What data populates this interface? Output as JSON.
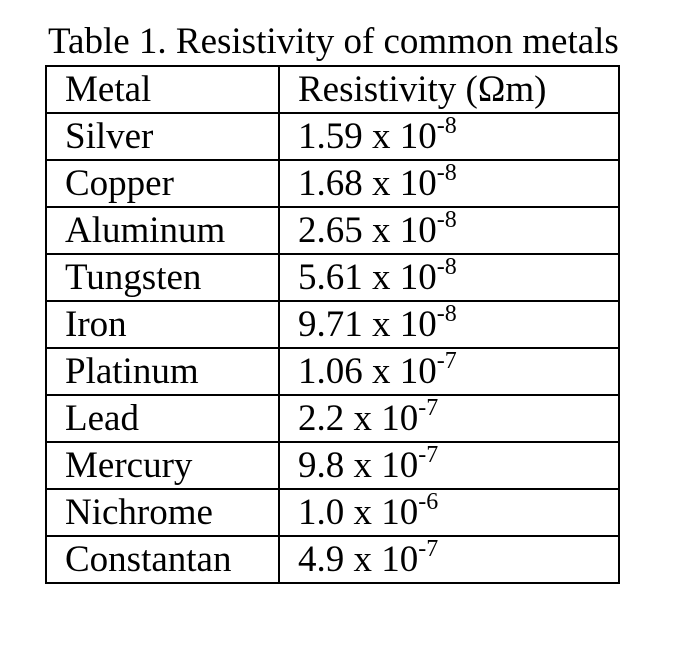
{
  "table": {
    "caption": "Table 1. Resistivity of common metals",
    "headers": {
      "metal": "Metal",
      "resistivity": "Resistivity (Ωm)"
    },
    "rows": [
      {
        "metal": "Silver",
        "mantissa": "1.59 x 10",
        "exponent": "-8"
      },
      {
        "metal": "Copper",
        "mantissa": "1.68 x 10",
        "exponent": "-8"
      },
      {
        "metal": "Aluminum",
        "mantissa": "2.65 x 10",
        "exponent": "-8"
      },
      {
        "metal": "Tungsten",
        "mantissa": "5.61 x 10",
        "exponent": "-8"
      },
      {
        "metal": "Iron",
        "mantissa": "9.71 x 10",
        "exponent": "-8"
      },
      {
        "metal": "Platinum",
        "mantissa": "1.06 x 10",
        "exponent": "-7"
      },
      {
        "metal": "Lead",
        "mantissa": "2.2 x 10",
        "exponent": "-7"
      },
      {
        "metal": "Mercury",
        "mantissa": "9.8 x 10",
        "exponent": "-7"
      },
      {
        "metal": "Nichrome",
        "mantissa": "1.0 x 10",
        "exponent": "-6"
      },
      {
        "metal": "Constantan",
        "mantissa": "4.9 x 10",
        "exponent": "-7"
      }
    ]
  }
}
